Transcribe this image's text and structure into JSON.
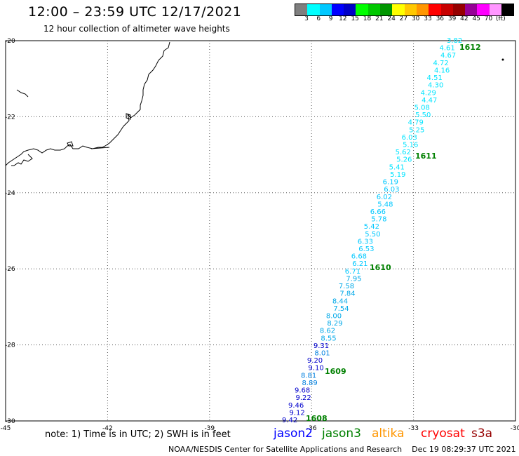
{
  "header": {
    "title": "12:00 – 23:59 UTC 12/17/2021",
    "subtitle": "12 hour collection of altimeter wave heights"
  },
  "scale": {
    "colors": [
      "#7f7f7f",
      "#00ffff",
      "#00c8ff",
      "#0000ff",
      "#0000c8",
      "#00ff00",
      "#00c800",
      "#009600",
      "#ffff00",
      "#ffc800",
      "#ff9600",
      "#ff0000",
      "#c80000",
      "#960000",
      "#960096",
      "#ff00ff",
      "#ff96ff",
      "#000000"
    ],
    "labels": [
      "3",
      "6",
      "9",
      "12",
      "15",
      "18",
      "21",
      "24",
      "27",
      "30",
      "33",
      "36",
      "39",
      "42",
      "45",
      "70",
      "(ft)"
    ]
  },
  "axes": {
    "lon_ticks": [
      "-45",
      "-42",
      "-39",
      "-36",
      "-33",
      "-30"
    ],
    "lat_ticks": [
      "-20",
      "-22",
      "-24",
      "-26",
      "-28",
      "-30"
    ]
  },
  "map_data": {
    "lon_range": [
      -45,
      -30
    ],
    "lat_range": [
      -30,
      -20
    ],
    "track": [
      {
        "v": "3.82",
        "c": "#00e4ff"
      },
      {
        "v": "4.61",
        "c": "#00e4ff"
      },
      {
        "v": "4.67",
        "c": "#00e4ff"
      },
      {
        "v": "4.72",
        "c": "#00e4ff"
      },
      {
        "v": "4.16",
        "c": "#00e4ff"
      },
      {
        "v": "4.51",
        "c": "#00e4ff"
      },
      {
        "v": "4.30",
        "c": "#00e4ff"
      },
      {
        "v": "4.29",
        "c": "#00e4ff"
      },
      {
        "v": "4.47",
        "c": "#00e4ff"
      },
      {
        "v": "5.08",
        "c": "#00e4ff"
      },
      {
        "v": "5.50",
        "c": "#00e4ff"
      },
      {
        "v": "4.79",
        "c": "#00e4ff"
      },
      {
        "v": "5.25",
        "c": "#00e4ff"
      },
      {
        "v": "6.03",
        "c": "#00e4ff"
      },
      {
        "v": "5.16",
        "c": "#00e4ff"
      },
      {
        "v": "5.62",
        "c": "#00e4ff"
      },
      {
        "v": "5.26",
        "c": "#00e4ff"
      },
      {
        "v": "5.41",
        "c": "#00e4ff"
      },
      {
        "v": "5.19",
        "c": "#00e4ff"
      },
      {
        "v": "6.19",
        "c": "#00c8ff"
      },
      {
        "v": "6.03",
        "c": "#00c8ff"
      },
      {
        "v": "6.02",
        "c": "#00c8ff"
      },
      {
        "v": "5.48",
        "c": "#00c8ff"
      },
      {
        "v": "6.66",
        "c": "#00c8ff"
      },
      {
        "v": "5.78",
        "c": "#00c8ff"
      },
      {
        "v": "5.42",
        "c": "#00c8ff"
      },
      {
        "v": "5.50",
        "c": "#00c8ff"
      },
      {
        "v": "6.33",
        "c": "#00c8ff"
      },
      {
        "v": "6.53",
        "c": "#00c8ff"
      },
      {
        "v": "6.68",
        "c": "#00c8ff"
      },
      {
        "v": "6.21",
        "c": "#00c8ff"
      },
      {
        "v": "6.71",
        "c": "#00c8ff"
      },
      {
        "v": "7.95",
        "c": "#00a8e8"
      },
      {
        "v": "7.58",
        "c": "#00a8e8"
      },
      {
        "v": "7.84",
        "c": "#00a8e8"
      },
      {
        "v": "8.44",
        "c": "#00a8e8"
      },
      {
        "v": "7.54",
        "c": "#00a8e8"
      },
      {
        "v": "8.00",
        "c": "#00a8e8"
      },
      {
        "v": "8.29",
        "c": "#00a8e8"
      },
      {
        "v": "8.62",
        "c": "#00a8e8"
      },
      {
        "v": "8.55",
        "c": "#00a8e8"
      },
      {
        "v": "9.31",
        "c": "#0000cc"
      },
      {
        "v": "8.01",
        "c": "#0080e0"
      },
      {
        "v": "9.20",
        "c": "#0000cc"
      },
      {
        "v": "9.10",
        "c": "#0000cc"
      },
      {
        "v": "8.81",
        "c": "#0080e0"
      },
      {
        "v": "8.89",
        "c": "#0080e0"
      },
      {
        "v": "9.68",
        "c": "#0000cc"
      },
      {
        "v": "9.22",
        "c": "#0000cc"
      },
      {
        "v": "9.46",
        "c": "#0000cc"
      },
      {
        "v": "9.12",
        "c": "#0000cc"
      },
      {
        "v": "9.42",
        "c": "#0000cc"
      }
    ],
    "time_labels": [
      "1612",
      "1611",
      "1610",
      "1609",
      "1608"
    ]
  },
  "legend": {
    "note": "note: 1) Time is in UTC; 2) SWH is in feet",
    "satellites": [
      {
        "name": "jason2",
        "color": "#0000ff"
      },
      {
        "name": "jason3",
        "color": "#008000"
      },
      {
        "name": "altika",
        "color": "#ff9600"
      },
      {
        "name": "cryosat",
        "color": "#ff0000"
      },
      {
        "name": "s3a",
        "color": "#960000"
      }
    ]
  },
  "footer": {
    "credit": "NOAA/NESDIS Center for Satellite Applications and Research",
    "timestamp": "Dec 19 08:29:37 UTC 2021"
  }
}
